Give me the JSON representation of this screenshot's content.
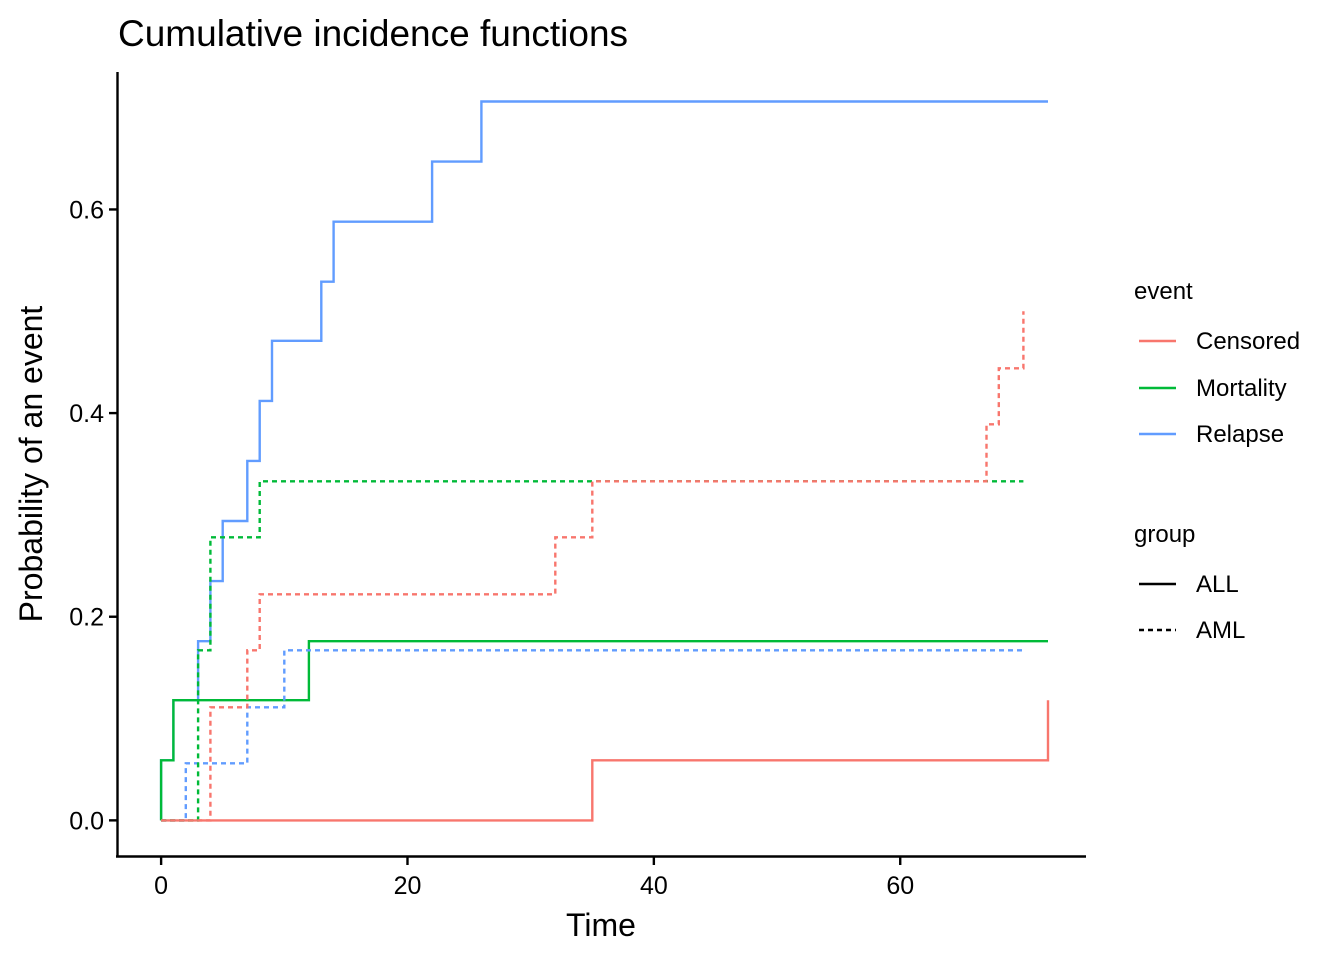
{
  "chart_data": {
    "type": "line",
    "step": true,
    "title": "Cumulative incidence functions",
    "xlabel": "Time",
    "ylabel": "Probability of an event",
    "xlim": [
      -3.5,
      75
    ],
    "ylim": [
      -0.035,
      0.735
    ],
    "x_ticks": [
      0,
      20,
      40,
      60
    ],
    "y_ticks": [
      0.0,
      0.2,
      0.4,
      0.6
    ],
    "x_tick_labels": [
      "0",
      "20",
      "40",
      "60"
    ],
    "y_tick_labels": [
      "0.0",
      "0.2",
      "0.4",
      "0.6"
    ],
    "grid": false,
    "legend_position": "right",
    "legends": [
      {
        "key": "event",
        "title": "event",
        "entries": [
          {
            "label": "Censored",
            "color": "#F8766D"
          },
          {
            "label": "Mortality",
            "color": "#00BA38"
          },
          {
            "label": "Relapse",
            "color": "#619CFF"
          }
        ]
      },
      {
        "key": "group",
        "title": "group",
        "entries": [
          {
            "label": "ALL",
            "linetype": "solid"
          },
          {
            "label": "AML",
            "linetype": "dashed"
          }
        ]
      }
    ],
    "series": [
      {
        "event": "Relapse",
        "group": "ALL",
        "color": "#619CFF",
        "linetype": "solid",
        "x": [
          0,
          1,
          3,
          4,
          5,
          7,
          8,
          9,
          13,
          14,
          22,
          26,
          72
        ],
        "y": [
          0.059,
          0.118,
          0.176,
          0.235,
          0.294,
          0.353,
          0.412,
          0.471,
          0.529,
          0.588,
          0.647,
          0.706,
          0.706
        ]
      },
      {
        "event": "Mortality",
        "group": "ALL",
        "color": "#00BA38",
        "linetype": "solid",
        "x": [
          0,
          1,
          12,
          72
        ],
        "y": [
          0.059,
          0.118,
          0.176,
          0.176
        ]
      },
      {
        "event": "Censored",
        "group": "ALL",
        "color": "#F8766D",
        "linetype": "solid",
        "x": [
          0,
          35,
          72
        ],
        "y": [
          0.0,
          0.059,
          0.118
        ]
      },
      {
        "event": "Relapse",
        "group": "AML",
        "color": "#619CFF",
        "linetype": "dashed",
        "x": [
          0,
          2,
          7,
          10,
          70
        ],
        "y": [
          0.0,
          0.056,
          0.111,
          0.167,
          0.167
        ]
      },
      {
        "event": "Mortality",
        "group": "AML",
        "color": "#00BA38",
        "linetype": "dashed",
        "x": [
          0,
          3,
          4,
          8,
          70
        ],
        "y": [
          0.0,
          0.167,
          0.278,
          0.333,
          0.333
        ]
      },
      {
        "event": "Censored",
        "group": "AML",
        "color": "#F8766D",
        "linetype": "dashed",
        "x": [
          0,
          4,
          7,
          8,
          32,
          35,
          67,
          68,
          70
        ],
        "y": [
          0.0,
          0.111,
          0.167,
          0.222,
          0.278,
          0.333,
          0.389,
          0.444,
          0.5
        ]
      }
    ]
  }
}
